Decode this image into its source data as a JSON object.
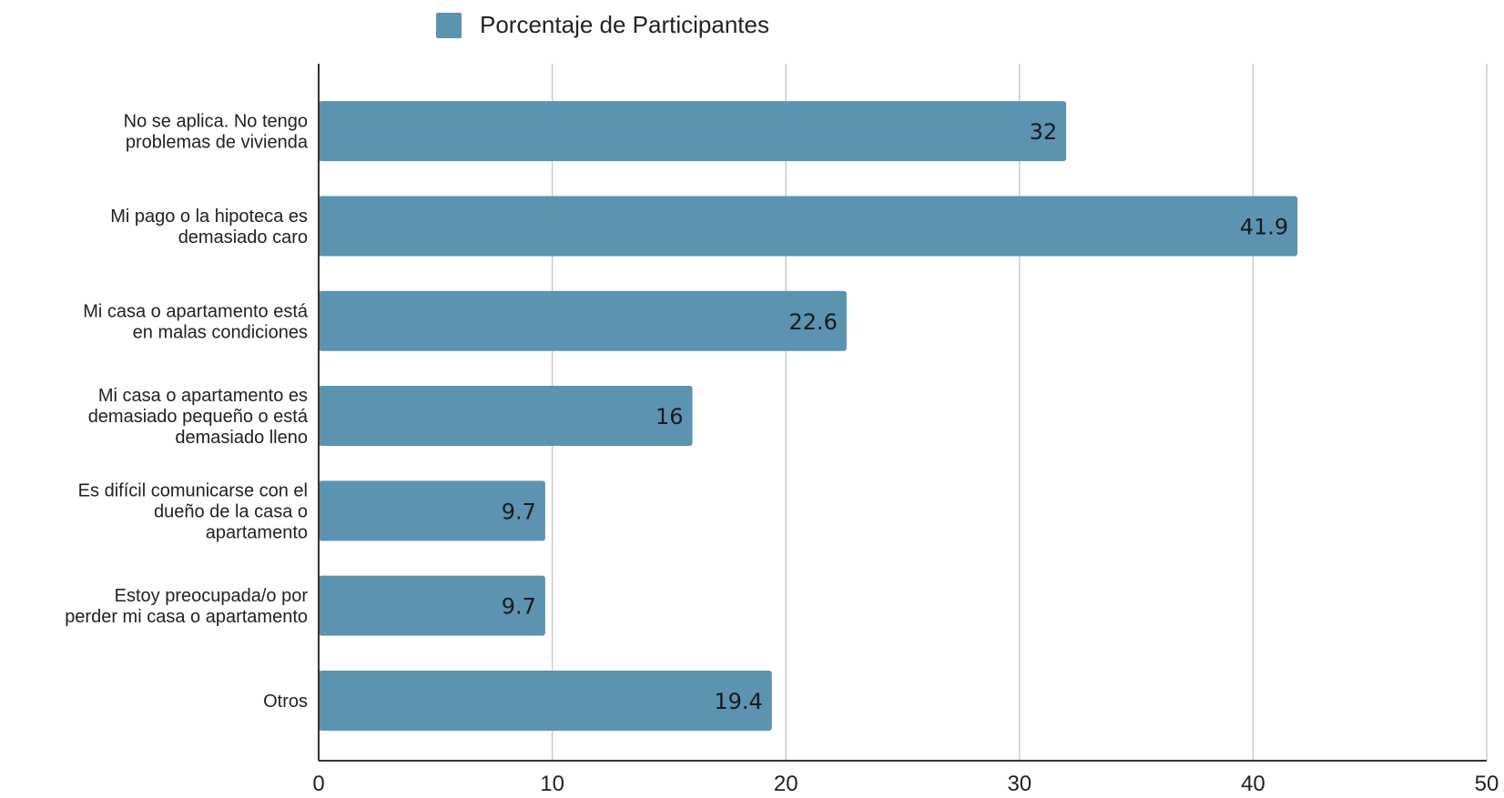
{
  "chart_data": {
    "type": "bar",
    "orientation": "horizontal",
    "categories": [
      [
        "No se aplica. No tengo",
        "problemas de vivienda"
      ],
      [
        "Mi pago o la hipoteca es",
        "demasiado caro"
      ],
      [
        "Mi casa o apartamento está",
        "en malas condiciones"
      ],
      [
        "Mi casa o apartamento es",
        "demasiado pequeño o está",
        "demasiado lleno"
      ],
      [
        "Es difícil comunicarse con el",
        "dueño de la casa o",
        "apartamento"
      ],
      [
        "Estoy preocupada/o por",
        "perder mi casa o apartamento"
      ],
      [
        "Otros"
      ]
    ],
    "series": [
      {
        "name": "Porcentaje de Participantes",
        "values": [
          32,
          41.9,
          22.6,
          16,
          9.7,
          9.7,
          19.4
        ],
        "color": "#5b93b1"
      }
    ],
    "data_labels": [
      "32",
      "41.9",
      "22.6",
      "16",
      "9.7",
      "9.7",
      "19.4"
    ],
    "x_ticks": [
      "0",
      "10",
      "20",
      "30",
      "40",
      "50"
    ],
    "xlim": [
      0,
      50
    ],
    "grid": true,
    "legend_position": "top",
    "colors": {
      "bar": "#5b93b1",
      "grid": "#cccccc",
      "axis": "#333333",
      "text": "#222222"
    }
  }
}
